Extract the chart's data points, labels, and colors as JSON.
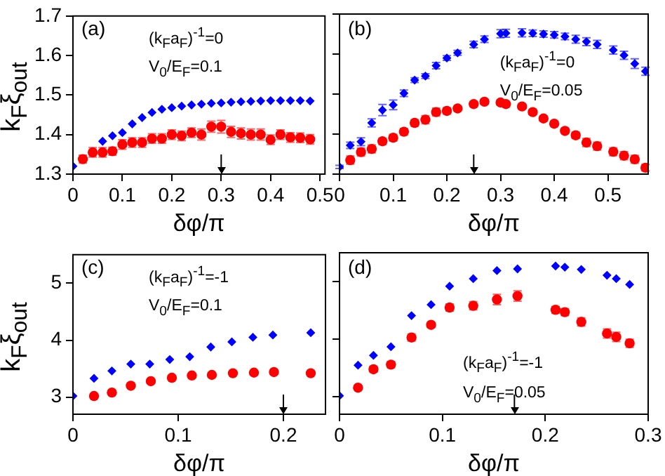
{
  "chart_data": [
    {
      "type": "scatter",
      "xlabel": "δφ/π",
      "ylabel": "k$_{F}$ξ$_{out}$",
      "xlim": [
        0,
        0.51
      ],
      "xticks": [
        0,
        0.1,
        0.2,
        0.3,
        0.4,
        0.5
      ],
      "ylim": [
        1.3,
        1.7
      ],
      "yticks": [
        1.3,
        1.4,
        1.5,
        1.6,
        1.7
      ],
      "annotations": [
        "(a)",
        "(k$_{F}$a$_{F}$)$^{-1}$=0",
        "V$_{0}$/E$_{F}$=0.1"
      ],
      "ref_lines": [
        {
          "axis": "x",
          "value": 0.3
        }
      ],
      "series": [
        {
          "color": "#ff0000",
          "marker": "circle",
          "x": [
            0.02,
            0.04,
            0.06,
            0.08,
            0.1,
            0.12,
            0.14,
            0.16,
            0.18,
            0.2,
            0.22,
            0.24,
            0.26,
            0.28,
            0.3,
            0.32,
            0.34,
            0.36,
            0.38,
            0.4,
            0.42,
            0.44,
            0.46,
            0.48
          ],
          "values": [
            1.338,
            1.355,
            1.355,
            1.358,
            1.375,
            1.38,
            1.38,
            1.39,
            1.39,
            1.4,
            1.397,
            1.405,
            1.4,
            1.42,
            1.42,
            1.407,
            1.403,
            1.4,
            1.4,
            1.387,
            1.4,
            1.393,
            1.392,
            1.388
          ],
          "errors": [
            0.01,
            0.012,
            0.012,
            0.01,
            0.012,
            0.012,
            0.012,
            0.012,
            0.012,
            0.012,
            0.012,
            0.012,
            0.014,
            0.014,
            0.016,
            0.014,
            0.014,
            0.014,
            0.014,
            0.012,
            0.012,
            0.012,
            0.012,
            0.012
          ]
        },
        {
          "color": "#0000ff",
          "marker": "diamond",
          "x": [
            0,
            0.06,
            0.08,
            0.1,
            0.12,
            0.14,
            0.16,
            0.18,
            0.2,
            0.22,
            0.24,
            0.26,
            0.28,
            0.3,
            0.32,
            0.34,
            0.36,
            0.38,
            0.4,
            0.42,
            0.44,
            0.46,
            0.48
          ],
          "values": [
            1.32,
            1.383,
            1.397,
            1.405,
            1.427,
            1.443,
            1.456,
            1.464,
            1.468,
            1.472,
            1.475,
            1.477,
            1.479,
            1.48,
            1.482,
            1.483,
            1.484,
            1.485,
            1.486,
            1.486,
            1.486,
            1.486,
            1.485
          ]
        }
      ]
    },
    {
      "type": "scatter",
      "xlabel": "δφ/π",
      "xlim": [
        0,
        0.575
      ],
      "xticks": [
        0,
        0.1,
        0.2,
        0.3,
        0.4,
        0.5
      ],
      "ylim": [
        1.3,
        1.7
      ],
      "yticks": [
        1.3,
        1.4,
        1.5,
        1.6,
        1.7
      ],
      "tick_labels": "x",
      "annotations": [
        "(b)",
        "(k$_{F}$a$_{F}$)$^{-1}$=0",
        "V$_{0}$/E$_{F}$=0.05"
      ],
      "ref_lines": [
        {
          "axis": "x",
          "value": 0.25
        }
      ],
      "series": [
        {
          "color": "#ff0000",
          "marker": "circle",
          "x": [
            0.02,
            0.04,
            0.06,
            0.08,
            0.1,
            0.12,
            0.14,
            0.16,
            0.18,
            0.2,
            0.22,
            0.25,
            0.27,
            0.3,
            0.31,
            0.34,
            0.36,
            0.38,
            0.4,
            0.42,
            0.44,
            0.46,
            0.48,
            0.51,
            0.53,
            0.55,
            0.57
          ],
          "values": [
            1.335,
            1.355,
            1.363,
            1.382,
            1.391,
            1.406,
            1.428,
            1.436,
            1.455,
            1.458,
            1.464,
            1.475,
            1.481,
            1.479,
            1.475,
            1.469,
            1.455,
            1.439,
            1.426,
            1.408,
            1.397,
            1.379,
            1.37,
            1.356,
            1.346,
            1.337,
            1.316
          ],
          "errors": [
            0.01,
            0.01,
            0.01,
            0.008,
            0.008,
            0.008,
            0.008,
            0.01,
            0.01,
            0.008,
            0.006,
            0.006,
            0.006,
            0.006,
            0.006,
            0.006,
            0.006,
            0.006,
            0.006,
            0.006,
            0.008,
            0.01,
            0.01,
            0.01,
            0.01,
            0.01,
            0.008
          ]
        },
        {
          "color": "#0000ff",
          "marker": "diamond",
          "x": [
            0,
            0.02,
            0.04,
            0.06,
            0.08,
            0.1,
            0.12,
            0.14,
            0.16,
            0.18,
            0.2,
            0.22,
            0.25,
            0.27,
            0.3,
            0.31,
            0.34,
            0.36,
            0.38,
            0.4,
            0.42,
            0.44,
            0.46,
            0.48,
            0.51,
            0.53,
            0.55,
            0.57
          ],
          "values": [
            1.318,
            1.372,
            1.381,
            1.428,
            1.46,
            1.473,
            1.502,
            1.535,
            1.545,
            1.571,
            1.59,
            1.603,
            1.624,
            1.637,
            1.651,
            1.652,
            1.653,
            1.652,
            1.65,
            1.648,
            1.644,
            1.637,
            1.631,
            1.624,
            1.61,
            1.597,
            1.576,
            1.557
          ],
          "errors": [
            0.004,
            0.008,
            0.01,
            0.01,
            0.014,
            0.012,
            0.008,
            0.006,
            0.006,
            0.008,
            0.006,
            0.006,
            0.008,
            0.008,
            0.01,
            0.01,
            0.01,
            0.008,
            0.008,
            0.008,
            0.008,
            0.01,
            0.01,
            0.01,
            0.01,
            0.01,
            0.012,
            0.01
          ]
        }
      ]
    },
    {
      "type": "scatter",
      "xlabel": "δφ/π",
      "ylabel": "k$_{F}$ξ$_{out}$",
      "xlim": [
        0,
        0.24
      ],
      "xticks": [
        0,
        0.1,
        0.2
      ],
      "ylim": [
        2.7,
        5.5
      ],
      "yticks": [
        3,
        4,
        5
      ],
      "annotations": [
        "(c)",
        "(k$_{F}$a$_{F}$)$^{-1}$=-1",
        "V$_{0}$/E$_{F}$=0.1"
      ],
      "ref_lines": [
        {
          "axis": "x",
          "value": 0.2
        }
      ],
      "series": [
        {
          "color": "#ff0000",
          "marker": "circle",
          "x": [
            0.02,
            0.037,
            0.055,
            0.074,
            0.094,
            0.113,
            0.132,
            0.152,
            0.172,
            0.191,
            0.226
          ],
          "values": [
            3.02,
            3.08,
            3.2,
            3.28,
            3.34,
            3.38,
            3.39,
            3.42,
            3.43,
            3.44,
            3.42
          ]
        },
        {
          "color": "#0000ff",
          "marker": "diamond",
          "x": [
            0,
            0.02,
            0.037,
            0.055,
            0.073,
            0.092,
            0.111,
            0.131,
            0.151,
            0.171,
            0.19,
            0.226
          ],
          "values": [
            3.02,
            3.33,
            3.46,
            3.58,
            3.58,
            3.66,
            3.71,
            3.88,
            3.97,
            4.05,
            4.09,
            4.13
          ]
        }
      ]
    },
    {
      "type": "scatter",
      "xlabel": "δφ/π",
      "xlim": [
        0,
        0.3
      ],
      "xticks": [
        0,
        0.1,
        0.2,
        0.3
      ],
      "ylim": [
        2.7,
        5.5
      ],
      "yticks": [
        3,
        4,
        5
      ],
      "tick_labels": "x",
      "annotations": [
        "(d)",
        "(k$_{F}$a$_{F}$)$^{-1}$=-1",
        "V$_{0}$/E$_{F}$=0.05"
      ],
      "ref_lines": [
        {
          "axis": "x",
          "value": 0.17
        }
      ],
      "series": [
        {
          "color": "#ff0000",
          "marker": "circle",
          "x": [
            0.018,
            0.033,
            0.05,
            0.07,
            0.089,
            0.107,
            0.13,
            0.153,
            0.173,
            0.21,
            0.219,
            0.235,
            0.26,
            0.269,
            0.282
          ],
          "values": [
            3.16,
            3.48,
            3.56,
            4.03,
            4.25,
            4.55,
            4.58,
            4.69,
            4.75,
            4.51,
            4.47,
            4.3,
            4.1,
            4.04,
            3.93
          ],
          "errors": [
            0.03,
            0.05,
            0.05,
            0.06,
            0.04,
            0.06,
            0.07,
            0.09,
            0.09,
            0.06,
            0.06,
            0.07,
            0.08,
            0.08,
            0.07
          ]
        },
        {
          "color": "#0000ff",
          "marker": "diamond",
          "x": [
            0,
            0.018,
            0.033,
            0.05,
            0.07,
            0.089,
            0.107,
            0.13,
            0.153,
            0.173,
            0.21,
            0.219,
            0.235,
            0.26,
            0.269,
            0.282
          ],
          "values": [
            3.02,
            3.55,
            3.72,
            3.87,
            4.41,
            4.6,
            4.92,
            5.05,
            5.19,
            5.22,
            5.27,
            5.25,
            5.21,
            5.11,
            5.05,
            4.95
          ]
        }
      ]
    }
  ]
}
